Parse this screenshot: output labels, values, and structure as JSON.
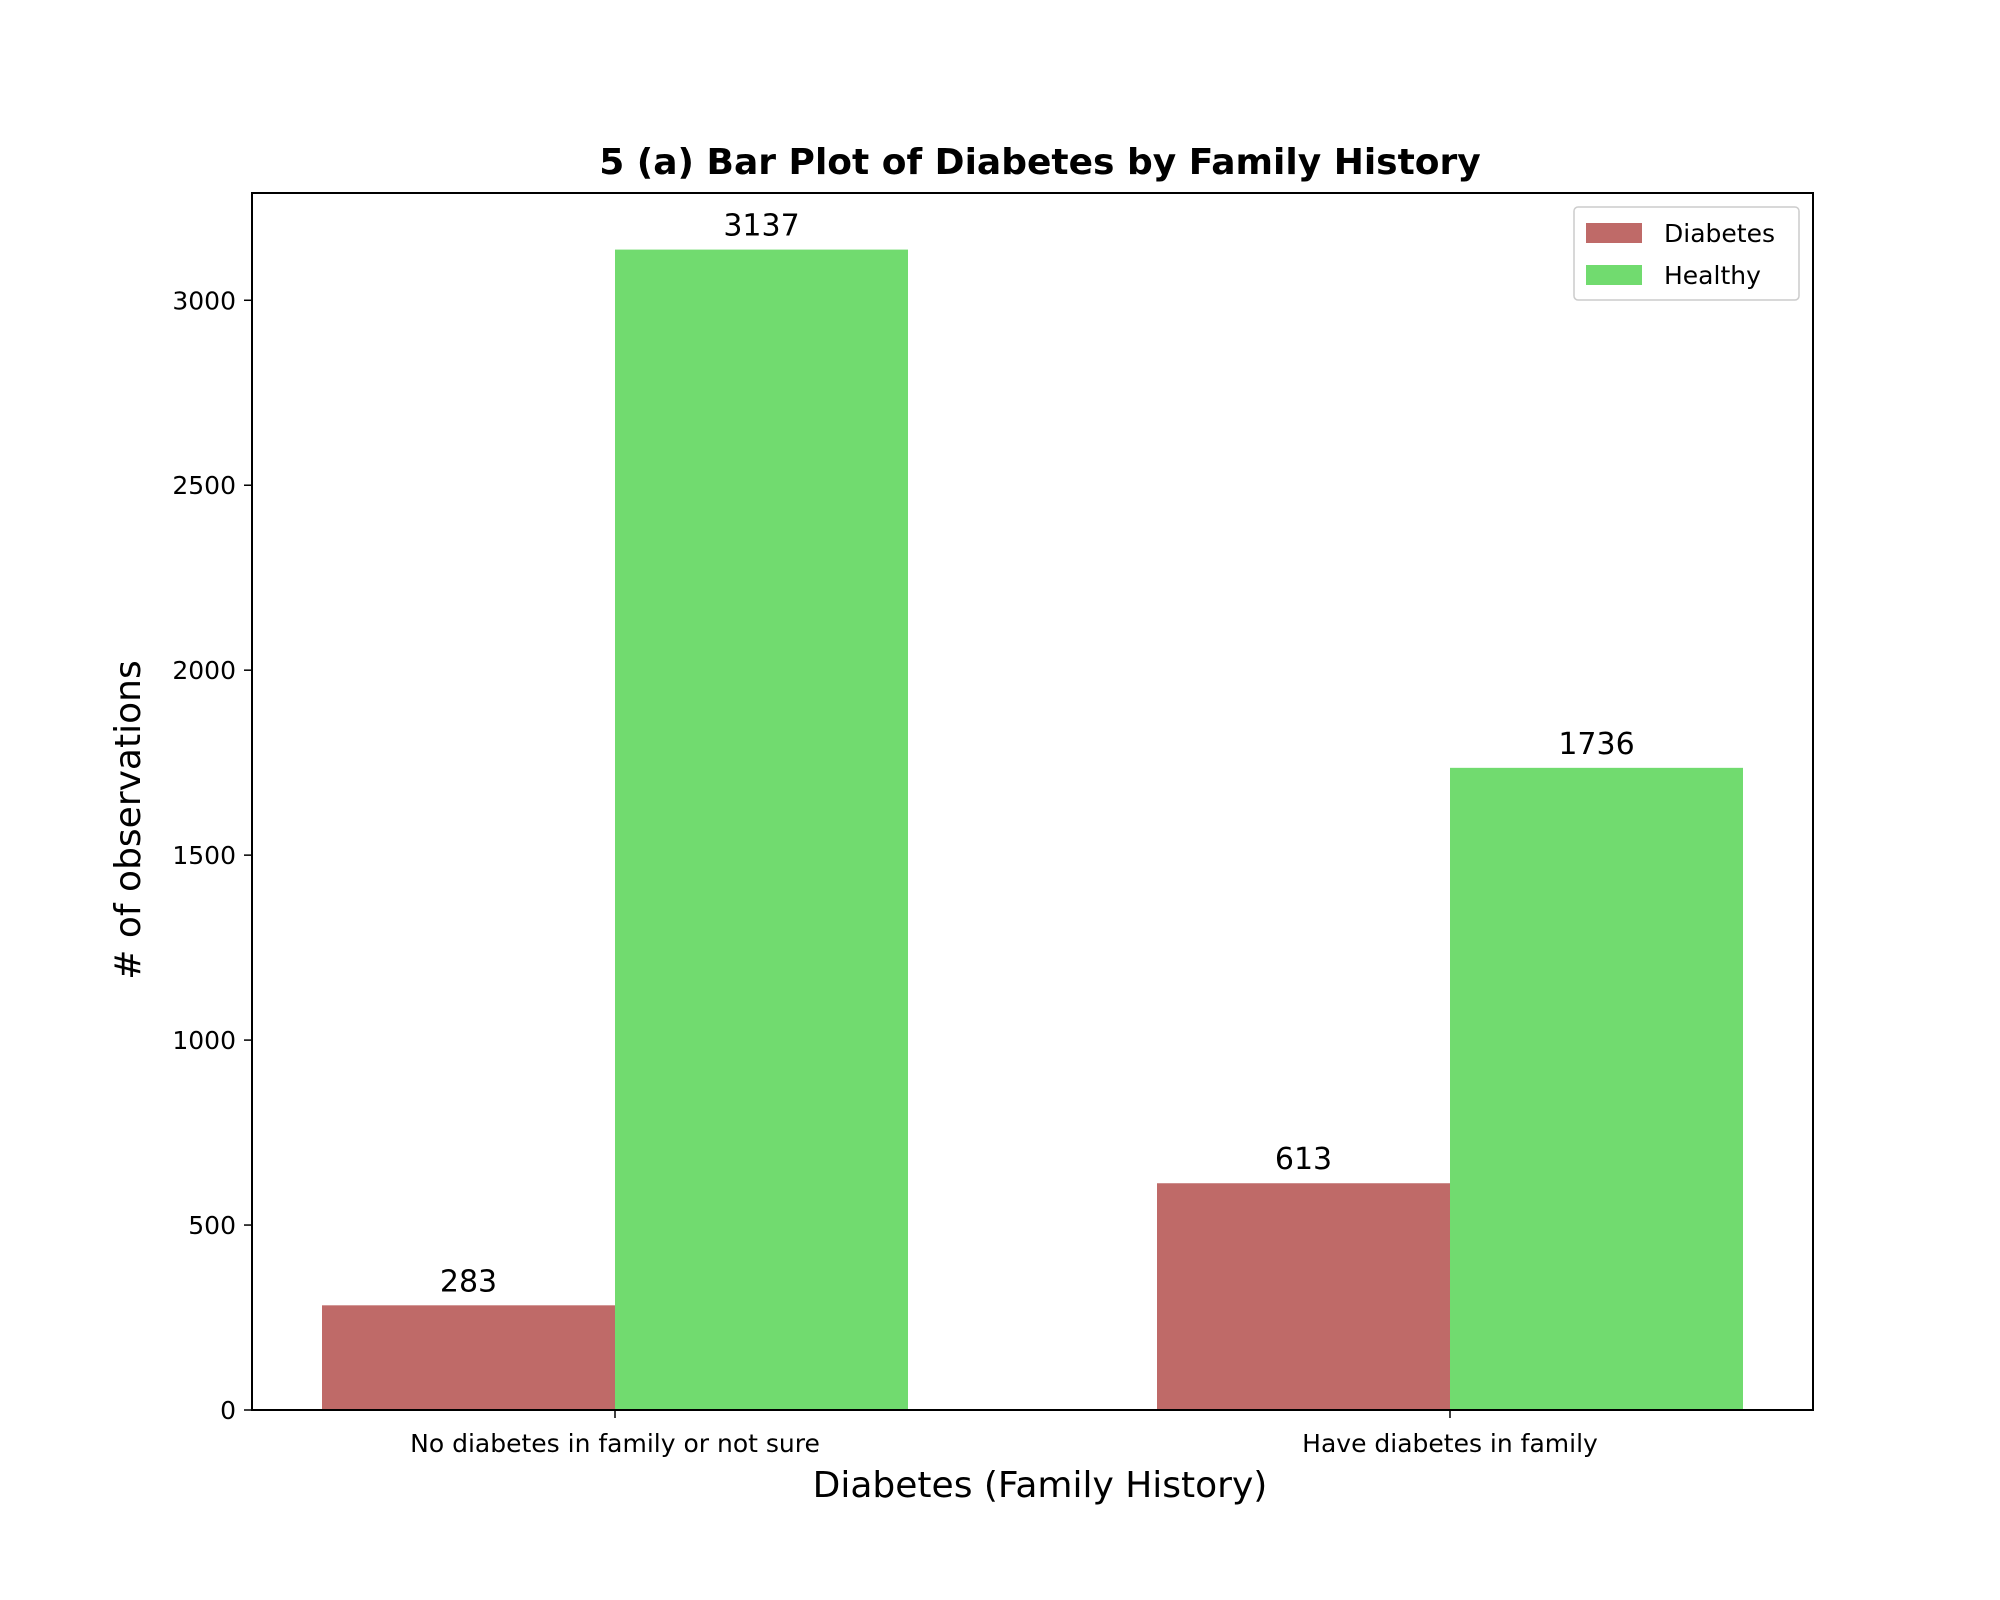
{
  "chart_data": {
    "type": "bar",
    "title": "5 (a) Bar Plot of Diabetes by Family History",
    "xlabel": "Diabetes (Family History)",
    "ylabel": "# of observations",
    "categories": [
      "No diabetes in family or not sure",
      "Have diabetes in family"
    ],
    "series": [
      {
        "name": "Diabetes",
        "values": [
          283,
          613
        ],
        "color": "#bf6a68"
      },
      {
        "name": "Healthy",
        "values": [
          3137,
          1736
        ],
        "color": "#71db6f"
      }
    ],
    "ylim": [
      0,
      3290
    ],
    "yticks": [
      0,
      500,
      1000,
      1500,
      2000,
      2500,
      3000
    ],
    "legend": "top-right",
    "grid": false
  }
}
